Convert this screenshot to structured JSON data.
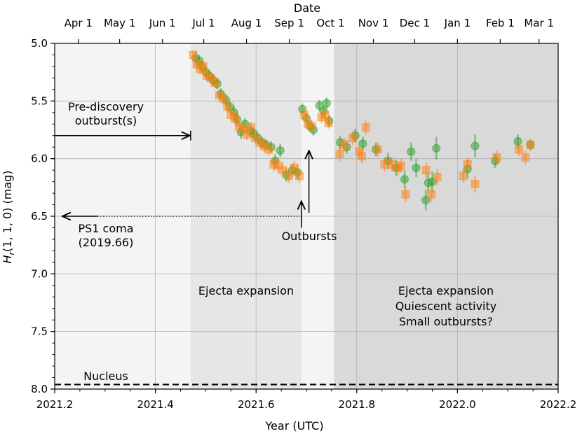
{
  "chart_data": {
    "type": "scatter",
    "xlabel": "Year (UTC)",
    "ylabel_main": "H",
    "ylabel_sub": "r",
    "ylabel_rest": "(1, 1, 0) (mag)",
    "top_xlabel": "Date",
    "xlim": [
      2021.2,
      2022.2
    ],
    "ylim": [
      8.0,
      5.0
    ],
    "y_inverted": true,
    "grid": true,
    "x_ticks": [
      {
        "value": 2021.2,
        "label": "2021.2"
      },
      {
        "value": 2021.4,
        "label": "2021.4"
      },
      {
        "value": 2021.6,
        "label": "2021.6"
      },
      {
        "value": 2021.8,
        "label": "2021.8"
      },
      {
        "value": 2022.0,
        "label": "2022.0"
      },
      {
        "value": 2022.2,
        "label": "2022.2"
      }
    ],
    "x_minor_step": 0.05,
    "y_ticks": [
      {
        "value": 5.0,
        "label": "5.0"
      },
      {
        "value": 5.5,
        "label": "5.5"
      },
      {
        "value": 6.0,
        "label": "6.0"
      },
      {
        "value": 6.5,
        "label": "6.5"
      },
      {
        "value": 7.0,
        "label": "7.0"
      },
      {
        "value": 7.5,
        "label": "7.5"
      },
      {
        "value": 8.0,
        "label": "8.0"
      }
    ],
    "y_minor_step": 0.1,
    "top_ticks": [
      {
        "value": 2021.247,
        "label": "Apr 1"
      },
      {
        "value": 2021.329,
        "label": "May 1"
      },
      {
        "value": 2021.414,
        "label": "Jun 1"
      },
      {
        "value": 2021.496,
        "label": "Jul 1"
      },
      {
        "value": 2021.581,
        "label": "Aug 1"
      },
      {
        "value": 2021.666,
        "label": "Sep 1"
      },
      {
        "value": 2021.748,
        "label": "Oct 1"
      },
      {
        "value": 2021.833,
        "label": "Nov 1"
      },
      {
        "value": 2021.915,
        "label": "Dec 1"
      },
      {
        "value": 2022.0,
        "label": "Jan 1"
      },
      {
        "value": 2022.085,
        "label": "Feb 1"
      },
      {
        "value": 2022.162,
        "label": "Mar 1"
      }
    ],
    "shaded_regions": [
      {
        "x0": 2021.2,
        "x1": 2021.47,
        "color": "#f4f4f4"
      },
      {
        "x0": 2021.47,
        "x1": 2021.69,
        "color": "#e6e6e6"
      },
      {
        "x0": 2021.69,
        "x1": 2021.755,
        "color": "#f4f4f4"
      },
      {
        "x0": 2021.755,
        "x1": 2022.2,
        "color": "#d9d9d9"
      }
    ],
    "nucleus_level": 7.96,
    "series": [
      {
        "name": "green",
        "color": "#2ca02c",
        "marker": "circle",
        "points": [
          {
            "x": 2021.48,
            "y": 5.13,
            "err": 0.06
          },
          {
            "x": 2021.487,
            "y": 5.15,
            "err": 0.05
          },
          {
            "x": 2021.492,
            "y": 5.2,
            "err": 0.05
          },
          {
            "x": 2021.5,
            "y": 5.25,
            "err": 0.05
          },
          {
            "x": 2021.507,
            "y": 5.28,
            "err": 0.05
          },
          {
            "x": 2021.515,
            "y": 5.32,
            "err": 0.05
          },
          {
            "x": 2021.523,
            "y": 5.35,
            "err": 0.05
          },
          {
            "x": 2021.53,
            "y": 5.44,
            "err": 0.05
          },
          {
            "x": 2021.54,
            "y": 5.49,
            "err": 0.05
          },
          {
            "x": 2021.548,
            "y": 5.55,
            "err": 0.05
          },
          {
            "x": 2021.556,
            "y": 5.6,
            "err": 0.06
          },
          {
            "x": 2021.562,
            "y": 5.66,
            "err": 0.06
          },
          {
            "x": 2021.57,
            "y": 5.77,
            "err": 0.06
          },
          {
            "x": 2021.578,
            "y": 5.7,
            "err": 0.05
          },
          {
            "x": 2021.588,
            "y": 5.76,
            "err": 0.05
          },
          {
            "x": 2021.595,
            "y": 5.78,
            "err": 0.05
          },
          {
            "x": 2021.603,
            "y": 5.82,
            "err": 0.05
          },
          {
            "x": 2021.612,
            "y": 5.86,
            "err": 0.05
          },
          {
            "x": 2021.62,
            "y": 5.88,
            "err": 0.05
          },
          {
            "x": 2021.63,
            "y": 5.9,
            "err": 0.05
          },
          {
            "x": 2021.638,
            "y": 6.02,
            "err": 0.06
          },
          {
            "x": 2021.648,
            "y": 5.93,
            "err": 0.06
          },
          {
            "x": 2021.66,
            "y": 6.14,
            "err": 0.06
          },
          {
            "x": 2021.672,
            "y": 6.1,
            "err": 0.06
          },
          {
            "x": 2021.682,
            "y": 6.12,
            "err": 0.06
          },
          {
            "x": 2021.692,
            "y": 5.57,
            "err": 0.05
          },
          {
            "x": 2021.7,
            "y": 5.65,
            "err": 0.05
          },
          {
            "x": 2021.707,
            "y": 5.72,
            "err": 0.05
          },
          {
            "x": 2021.714,
            "y": 5.75,
            "err": 0.05
          },
          {
            "x": 2021.726,
            "y": 5.54,
            "err": 0.05
          },
          {
            "x": 2021.734,
            "y": 5.59,
            "err": 0.05
          },
          {
            "x": 2021.74,
            "y": 5.52,
            "err": 0.05
          },
          {
            "x": 2021.745,
            "y": 5.67,
            "err": 0.05
          },
          {
            "x": 2021.767,
            "y": 5.86,
            "err": 0.06
          },
          {
            "x": 2021.78,
            "y": 5.9,
            "err": 0.06
          },
          {
            "x": 2021.797,
            "y": 5.8,
            "err": 0.06
          },
          {
            "x": 2021.812,
            "y": 5.87,
            "err": 0.06
          },
          {
            "x": 2021.838,
            "y": 5.92,
            "err": 0.06
          },
          {
            "x": 2021.862,
            "y": 6.02,
            "err": 0.07
          },
          {
            "x": 2021.878,
            "y": 6.08,
            "err": 0.07
          },
          {
            "x": 2021.895,
            "y": 6.18,
            "err": 0.08
          },
          {
            "x": 2021.908,
            "y": 5.94,
            "err": 0.08
          },
          {
            "x": 2021.918,
            "y": 6.08,
            "err": 0.08
          },
          {
            "x": 2021.937,
            "y": 6.36,
            "err": 0.09
          },
          {
            "x": 2021.942,
            "y": 6.21,
            "err": 0.09
          },
          {
            "x": 2021.95,
            "y": 6.2,
            "err": 0.09
          },
          {
            "x": 2021.958,
            "y": 5.91,
            "err": 0.1
          },
          {
            "x": 2022.02,
            "y": 6.09,
            "err": 0.08
          },
          {
            "x": 2022.035,
            "y": 5.89,
            "err": 0.1
          },
          {
            "x": 2022.075,
            "y": 6.02,
            "err": 0.06
          },
          {
            "x": 2022.12,
            "y": 5.85,
            "err": 0.06
          },
          {
            "x": 2022.145,
            "y": 5.88,
            "err": 0.05
          }
        ]
      },
      {
        "name": "orange",
        "color": "#ff7f0e",
        "marker": "square",
        "points": [
          {
            "x": 2021.475,
            "y": 5.1,
            "err": 0.04
          },
          {
            "x": 2021.482,
            "y": 5.18,
            "err": 0.05
          },
          {
            "x": 2021.489,
            "y": 5.22,
            "err": 0.05
          },
          {
            "x": 2021.495,
            "y": 5.2,
            "err": 0.05
          },
          {
            "x": 2021.502,
            "y": 5.28,
            "err": 0.05
          },
          {
            "x": 2021.51,
            "y": 5.3,
            "err": 0.05
          },
          {
            "x": 2021.518,
            "y": 5.34,
            "err": 0.05
          },
          {
            "x": 2021.527,
            "y": 5.45,
            "err": 0.05
          },
          {
            "x": 2021.535,
            "y": 5.48,
            "err": 0.05
          },
          {
            "x": 2021.543,
            "y": 5.55,
            "err": 0.05
          },
          {
            "x": 2021.55,
            "y": 5.62,
            "err": 0.05
          },
          {
            "x": 2021.558,
            "y": 5.65,
            "err": 0.05
          },
          {
            "x": 2021.566,
            "y": 5.72,
            "err": 0.05
          },
          {
            "x": 2021.574,
            "y": 5.74,
            "err": 0.05
          },
          {
            "x": 2021.582,
            "y": 5.79,
            "err": 0.05
          },
          {
            "x": 2021.59,
            "y": 5.73,
            "err": 0.05
          },
          {
            "x": 2021.598,
            "y": 5.82,
            "err": 0.05
          },
          {
            "x": 2021.607,
            "y": 5.86,
            "err": 0.05
          },
          {
            "x": 2021.616,
            "y": 5.89,
            "err": 0.05
          },
          {
            "x": 2021.625,
            "y": 5.92,
            "err": 0.05
          },
          {
            "x": 2021.635,
            "y": 6.05,
            "err": 0.06
          },
          {
            "x": 2021.644,
            "y": 6.06,
            "err": 0.06
          },
          {
            "x": 2021.653,
            "y": 6.1,
            "err": 0.06
          },
          {
            "x": 2021.665,
            "y": 6.15,
            "err": 0.06
          },
          {
            "x": 2021.676,
            "y": 6.08,
            "err": 0.06
          },
          {
            "x": 2021.686,
            "y": 6.15,
            "err": 0.06
          },
          {
            "x": 2021.696,
            "y": 5.62,
            "err": 0.05
          },
          {
            "x": 2021.703,
            "y": 5.7,
            "err": 0.05
          },
          {
            "x": 2021.711,
            "y": 5.72,
            "err": 0.05
          },
          {
            "x": 2021.73,
            "y": 5.64,
            "err": 0.05
          },
          {
            "x": 2021.737,
            "y": 5.62,
            "err": 0.05
          },
          {
            "x": 2021.744,
            "y": 5.69,
            "err": 0.05
          },
          {
            "x": 2021.766,
            "y": 5.96,
            "err": 0.06
          },
          {
            "x": 2021.775,
            "y": 5.88,
            "err": 0.06
          },
          {
            "x": 2021.792,
            "y": 5.82,
            "err": 0.06
          },
          {
            "x": 2021.805,
            "y": 5.94,
            "err": 0.06
          },
          {
            "x": 2021.81,
            "y": 5.98,
            "err": 0.06
          },
          {
            "x": 2021.818,
            "y": 5.73,
            "err": 0.06
          },
          {
            "x": 2021.842,
            "y": 5.92,
            "err": 0.06
          },
          {
            "x": 2021.855,
            "y": 6.05,
            "err": 0.06
          },
          {
            "x": 2021.87,
            "y": 6.05,
            "err": 0.06
          },
          {
            "x": 2021.882,
            "y": 6.08,
            "err": 0.06
          },
          {
            "x": 2021.888,
            "y": 6.06,
            "err": 0.06
          },
          {
            "x": 2021.897,
            "y": 6.31,
            "err": 0.07
          },
          {
            "x": 2021.938,
            "y": 6.1,
            "err": 0.07
          },
          {
            "x": 2021.948,
            "y": 6.31,
            "err": 0.07
          },
          {
            "x": 2021.96,
            "y": 6.16,
            "err": 0.07
          },
          {
            "x": 2022.012,
            "y": 6.15,
            "err": 0.06
          },
          {
            "x": 2022.02,
            "y": 6.05,
            "err": 0.06
          },
          {
            "x": 2022.035,
            "y": 6.22,
            "err": 0.07
          },
          {
            "x": 2022.078,
            "y": 5.99,
            "err": 0.06
          },
          {
            "x": 2022.122,
            "y": 5.92,
            "err": 0.06
          },
          {
            "x": 2022.135,
            "y": 5.99,
            "err": 0.06
          },
          {
            "x": 2022.145,
            "y": 5.88,
            "err": 0.05
          }
        ]
      }
    ],
    "annotations": {
      "prediscovery_line1": "Pre-discovery",
      "prediscovery_line2": "outburst(s)",
      "ps1_line1": "PS1 coma",
      "ps1_line2": "(2019.66)",
      "outbursts": "Outbursts",
      "ejecta1": "Ejecta expansion",
      "ejecta2_line1": "Ejecta expansion",
      "ejecta2_line2": "Quiescent activity",
      "ejecta2_line3": "Small outbursts?",
      "nucleus": "Nucleus"
    }
  }
}
